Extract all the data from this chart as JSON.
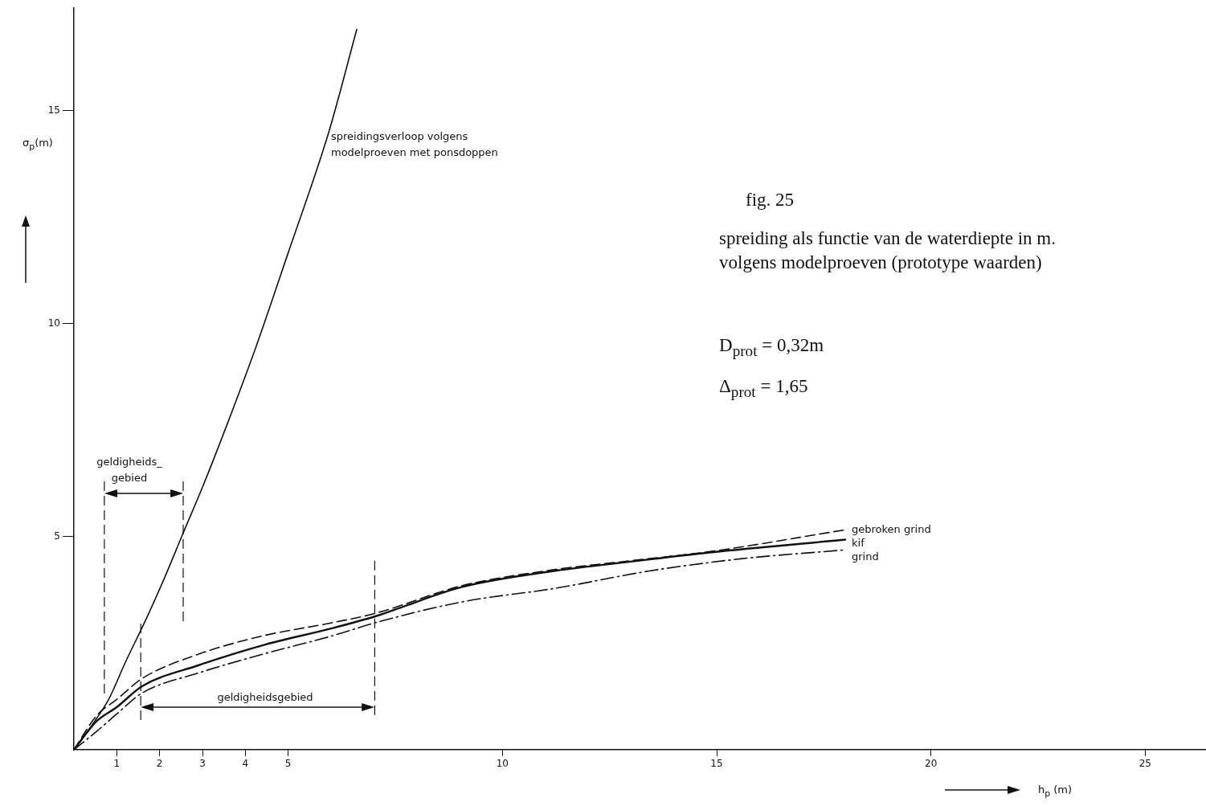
{
  "chart_data": {
    "type": "line",
    "title": "fig. 25",
    "subtitle": "spreiding als functie van de waterdiepte in m. volgens modelproeven (prototype waarden)",
    "xlabel": "h$_{p}$ (m)",
    "ylabel": "σ$_{p}$(m)",
    "xlim": [
      0,
      26.4
    ],
    "ylim": [
      0,
      17.4
    ],
    "xticks": [
      1,
      2,
      3,
      4,
      5,
      10,
      15,
      20,
      25
    ],
    "yticks": [
      5,
      10,
      15
    ],
    "legend": false,
    "marker": "none",
    "series": [
      {
        "color": "#111111",
        "line_style": "solid",
        "x": [
          0,
          0.4,
          0.81,
          1.2,
          1.65,
          2.1,
          2.53,
          3.0,
          3.6,
          4.22,
          5.0,
          5.95,
          6.6
        ],
        "values": [
          0,
          0.55,
          1.18,
          2.05,
          2.99,
          4.0,
          5.04,
          6.16,
          7.7,
          9.37,
          11.66,
          14.5,
          16.9
        ]
      },
      {
        "name": "gebroken grind",
        "color": "#111111",
        "line_style": "dashed",
        "x": [
          0,
          0.53,
          1.0,
          1.59,
          2.9,
          4.4,
          6.02,
          7.03,
          9.06,
          11.24,
          13.04,
          14.84,
          18.0
        ],
        "values": [
          0,
          0.8,
          1.18,
          1.67,
          2.24,
          2.67,
          2.98,
          3.2,
          3.85,
          4.23,
          4.44,
          4.65,
          5.16
        ]
      },
      {
        "name": "kif",
        "color": "#111111",
        "line_style": "solid",
        "x": [
          0,
          0.53,
          1.0,
          1.59,
          2.9,
          4.4,
          6.02,
          7.03,
          9.06,
          11.24,
          13.04,
          14.84,
          18.0
        ],
        "values": [
          0,
          0.67,
          1.0,
          1.49,
          1.98,
          2.45,
          2.85,
          3.13,
          3.82,
          4.2,
          4.42,
          4.63,
          4.93
        ]
      },
      {
        "name": "grind",
        "color": "#111111",
        "line_style": "dashdot",
        "x": [
          0,
          0.53,
          1.0,
          1.59,
          2.9,
          4.4,
          6.02,
          7.03,
          9.06,
          11.24,
          13.4,
          15.56,
          18.0
        ],
        "values": [
          0,
          0.43,
          0.84,
          1.33,
          1.8,
          2.24,
          2.67,
          2.98,
          3.47,
          3.79,
          4.19,
          4.48,
          4.69
        ]
      }
    ],
    "ref_lines": [
      {
        "axis": "x",
        "value": 0.71,
        "line_style": "dashed"
      },
      {
        "axis": "x",
        "value": 2.55,
        "line_style": "dashed"
      },
      {
        "axis": "x",
        "value": 1.56,
        "line_style": "dashed"
      },
      {
        "axis": "x",
        "value": 7.02,
        "line_style": "dashed"
      }
    ],
    "annotations": [
      "spreidingsverloop volgens modelproeven met ponsdoppen",
      "D$_{prot}$ = 0,32m",
      "Δ$_{prot}$ = 1,65",
      "geldigheids_ gebied",
      "geldigheidsgebied"
    ]
  }
}
